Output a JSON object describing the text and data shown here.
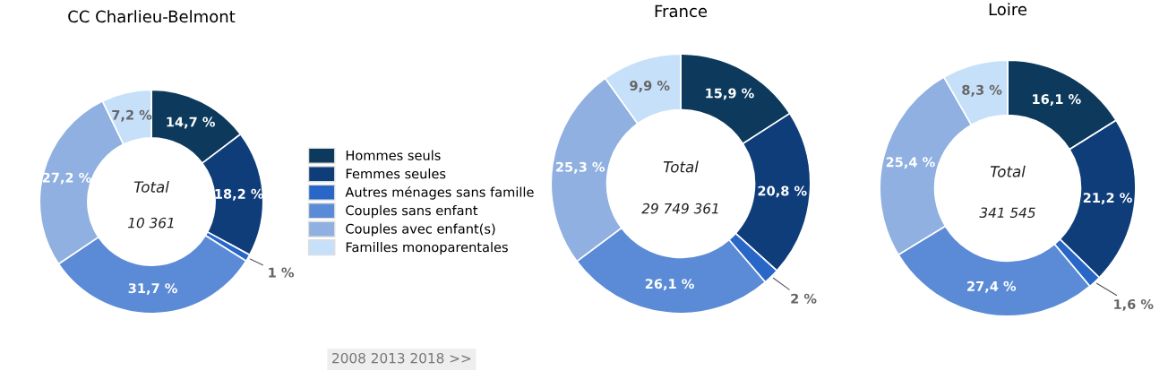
{
  "chart_data": [
    {
      "type": "donut",
      "title": "CC Charlieu-Belmont",
      "categories": [
        "Hommes seuls",
        "Femmes seules",
        "Autres ménages sans famille",
        "Couples sans enfant",
        "Couples avec enfant(s)",
        "Familles monoparentales"
      ],
      "values": [
        14.7,
        18.2,
        1,
        31.7,
        27.2,
        7.2
      ],
      "value_labels": [
        "14,7 %",
        "18,2 %",
        "1 %",
        "31,7 %",
        "27,2 %",
        "7,2 %"
      ],
      "colors": [
        "#0d3a5c",
        "#0f3d7a",
        "#2866c8",
        "#5b8bd6",
        "#8fb0e0",
        "#c6e0fa"
      ],
      "annotations": [
        "Total",
        "10 361",
        "2008 2013 2018 >>"
      ],
      "legend": "right"
    },
    {
      "type": "donut",
      "title": "France",
      "values": [
        15.9,
        20.8,
        2,
        26.1,
        25.3,
        9.9
      ],
      "value_labels": [
        "15,9 %",
        "20,8 %",
        "2 %",
        "26,1 %",
        "25,3 %",
        "9,9 %"
      ],
      "colors": [
        "#0d3a5c",
        "#0f3d7a",
        "#2866c8",
        "#5b8bd6",
        "#8fb0e0",
        "#c6e0fa"
      ],
      "annotations": [
        "Total",
        "29 749 361"
      ]
    },
    {
      "type": "donut",
      "title": "Loire",
      "values": [
        16.1,
        21.2,
        1.6,
        27.4,
        25.4,
        8.3
      ],
      "value_labels": [
        "16,1 %",
        "21,2 %",
        "1,6 %",
        "27,4 %",
        "25,4 %",
        "8,3 %"
      ],
      "colors": [
        "#0d3a5c",
        "#0f3d7a",
        "#2866c8",
        "#5b8bd6",
        "#8fb0e0",
        "#c6e0fa"
      ],
      "annotations": [
        "Total",
        "341 545"
      ]
    }
  ]
}
